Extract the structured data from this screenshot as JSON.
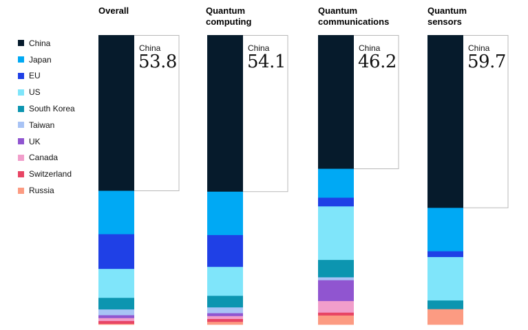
{
  "chart_data": {
    "type": "bar",
    "stacked": true,
    "normalized_to": 100,
    "legend_position": "left",
    "categories": [
      "Overall",
      "Quantum\ncomputing",
      "Quantum\ncommunications",
      "Quantum\nsensors"
    ],
    "series": [
      {
        "name": "China",
        "color": "#061b2c",
        "values": [
          53.8,
          54.1,
          46.2,
          59.7
        ]
      },
      {
        "name": "Japan",
        "color": "#00a9f4",
        "values": [
          15.0,
          15.0,
          10.0,
          15.0
        ]
      },
      {
        "name": "EU",
        "color": "#1f40e6",
        "values": [
          12.0,
          11.0,
          3.0,
          2.0
        ]
      },
      {
        "name": "US",
        "color": "#7fe5fa",
        "values": [
          10.0,
          10.0,
          18.5,
          15.0
        ]
      },
      {
        "name": "South Korea",
        "color": "#0c95b0",
        "values": [
          4.0,
          4.0,
          6.0,
          3.0
        ]
      },
      {
        "name": "Taiwan",
        "color": "#a8c3f5",
        "values": [
          2.0,
          2.0,
          1.0,
          0.0
        ]
      },
      {
        "name": "UK",
        "color": "#9055d0",
        "values": [
          1.0,
          1.0,
          7.2,
          0.0
        ]
      },
      {
        "name": "Canada",
        "color": "#f19ecb",
        "values": [
          1.0,
          1.0,
          4.0,
          0.0
        ]
      },
      {
        "name": "Switzerland",
        "color": "#e84564",
        "values": [
          1.0,
          1.0,
          1.0,
          0.0
        ]
      },
      {
        "name": "Russia",
        "color": "#fc9b82",
        "values": [
          0.2,
          0.9,
          3.1,
          5.3
        ]
      }
    ],
    "callouts": [
      {
        "label": "China",
        "value": "53.8"
      },
      {
        "label": "China",
        "value": "54.1"
      },
      {
        "label": "China",
        "value": "46.2"
      },
      {
        "label": "China",
        "value": "59.7"
      }
    ]
  }
}
